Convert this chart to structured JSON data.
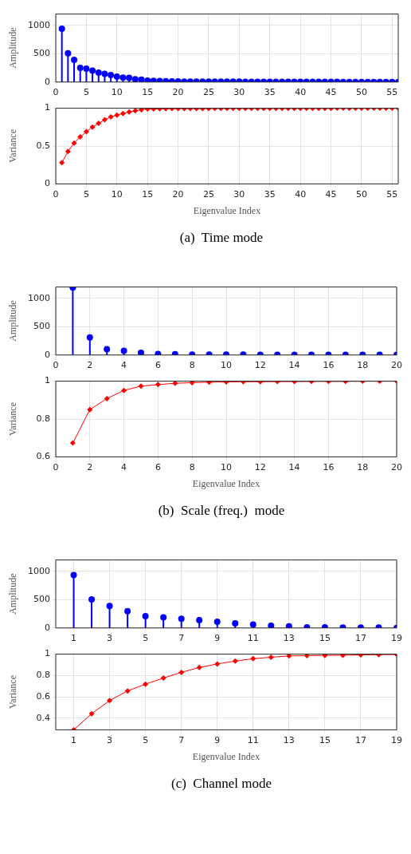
{
  "chart_data": [
    {
      "type": "lollipop",
      "ylabel": "Amplitude",
      "x": [
        1,
        2,
        3,
        4,
        5,
        6,
        7,
        8,
        9,
        10,
        11,
        12,
        13,
        14,
        15,
        16,
        17,
        18,
        19,
        20,
        21,
        22,
        23,
        24,
        25,
        26,
        27,
        28,
        29,
        30,
        31,
        32,
        33,
        34,
        35,
        36,
        37,
        38,
        39,
        40,
        41,
        42,
        43,
        44,
        45,
        46,
        47,
        48,
        49,
        50,
        51,
        52,
        53,
        54,
        55,
        56
      ],
      "values": [
        942,
        508,
        392,
        250,
        238,
        200,
        165,
        146,
        123,
        96,
        77,
        73,
        50,
        42,
        27,
        23,
        19,
        15,
        12,
        10,
        9,
        9,
        8,
        8,
        7,
        7,
        7,
        6,
        6,
        6,
        5,
        5,
        5,
        5,
        4,
        4,
        4,
        4,
        4,
        3,
        3,
        3,
        3,
        3,
        3,
        3,
        2,
        2,
        2,
        2,
        2,
        2,
        2,
        2,
        2,
        1
      ],
      "color": "#0000ff",
      "marker": "circle",
      "xlim": [
        0,
        56
      ],
      "xticks": [
        0,
        5,
        10,
        15,
        20,
        25,
        30,
        35,
        40,
        45,
        50,
        55
      ],
      "ylim": [
        0,
        1200
      ],
      "yticks": [
        0,
        500,
        1000
      ],
      "grid": true
    },
    {
      "type": "line",
      "xlabel": "Eigenvalue Index",
      "ylabel": "Variance",
      "x": [
        1,
        2,
        3,
        4,
        5,
        6,
        7,
        8,
        9,
        10,
        11,
        12,
        13,
        14,
        15,
        16,
        17,
        18,
        19,
        20,
        21,
        22,
        23,
        24,
        25,
        26,
        27,
        28,
        29,
        30,
        31,
        32,
        33,
        34,
        35,
        36,
        37,
        38,
        39,
        40,
        41,
        42,
        43,
        44,
        45,
        46,
        47,
        48,
        49,
        50,
        51,
        52,
        53,
        54,
        55,
        56
      ],
      "values": [
        0.28,
        0.43,
        0.54,
        0.62,
        0.69,
        0.75,
        0.8,
        0.847,
        0.884,
        0.91,
        0.93,
        0.95,
        0.966,
        0.98,
        0.99,
        0.99,
        0.992,
        0.994,
        0.995,
        0.996,
        0.997,
        0.997,
        0.997,
        0.997,
        0.997,
        0.998,
        0.998,
        0.998,
        0.998,
        0.998,
        0.998,
        0.998,
        0.998,
        0.998,
        0.998,
        0.999,
        0.999,
        0.999,
        0.999,
        0.999,
        0.999,
        0.999,
        0.999,
        0.999,
        0.999,
        1,
        1,
        1,
        1,
        1,
        1,
        1,
        1,
        1,
        1,
        1
      ],
      "color": "#ff0000",
      "marker": "diamond",
      "line_style": "solid",
      "xlim": [
        0,
        56
      ],
      "xticks": [
        0,
        5,
        10,
        15,
        20,
        25,
        30,
        35,
        40,
        45,
        50,
        55
      ],
      "ylim": [
        0,
        1
      ],
      "yticks": [
        0,
        0.5,
        1
      ],
      "grid": true,
      "annotations": [
        "(a)  Time mode"
      ]
    },
    {
      "type": "lollipop",
      "ylabel": "Amplitude",
      "x": [
        1,
        2,
        3,
        4,
        5,
        6,
        7,
        8,
        9,
        10,
        11,
        12,
        13,
        14,
        15,
        16,
        17,
        18,
        19,
        20
      ],
      "values": [
        1190,
        309,
        102,
        73,
        41,
        20,
        16,
        8,
        7,
        6,
        6,
        5,
        5,
        4,
        4,
        4,
        3,
        3,
        3,
        3
      ],
      "color": "#0000ff",
      "marker": "circle",
      "xlim": [
        0,
        20
      ],
      "xticks": [
        0,
        2,
        4,
        6,
        8,
        10,
        12,
        14,
        16,
        18,
        20
      ],
      "ylim": [
        0,
        1200
      ],
      "yticks": [
        0,
        500,
        1000
      ],
      "grid": true
    },
    {
      "type": "line",
      "xlabel": "Eigenvalue Index",
      "ylabel": "Variance",
      "x": [
        1,
        2,
        3,
        4,
        5,
        6,
        7,
        8,
        9,
        10,
        11,
        12,
        13,
        14,
        15,
        16,
        17,
        18,
        19,
        20
      ],
      "values": [
        0.673,
        0.85,
        0.908,
        0.951,
        0.974,
        0.982,
        0.989,
        0.992,
        0.995,
        0.996,
        0.997,
        0.997,
        0.998,
        0.998,
        0.999,
        0.999,
        0.999,
        1,
        1,
        1
      ],
      "color": "#ff0000",
      "marker": "diamond",
      "line_style": "solid",
      "xlim": [
        0,
        20
      ],
      "xticks": [
        0,
        2,
        4,
        6,
        8,
        10,
        12,
        14,
        16,
        18,
        20
      ],
      "ylim": [
        0.6,
        1
      ],
      "yticks": [
        0.6,
        0.8,
        1
      ],
      "grid": true,
      "annotations": [
        "(b)  Scale (freq.)  mode"
      ]
    },
    {
      "type": "lollipop",
      "ylabel": "Amplitude",
      "x": [
        1,
        2,
        3,
        4,
        5,
        6,
        7,
        8,
        9,
        10,
        11,
        12,
        13,
        14,
        15,
        16,
        17,
        18,
        19
      ],
      "values": [
        934,
        504,
        389,
        295,
        209,
        189,
        164,
        139,
        111,
        82,
        61,
        41,
        29,
        12,
        12,
        8,
        8,
        8,
        2
      ],
      "color": "#0000ff",
      "marker": "circle",
      "xlim": [
        0,
        19
      ],
      "xticks": [
        1,
        3,
        5,
        7,
        9,
        11,
        13,
        15,
        17,
        19
      ],
      "ylim": [
        0,
        1200
      ],
      "yticks": [
        0,
        500,
        1000
      ],
      "grid": true
    },
    {
      "type": "line",
      "xlabel": "Eigenvalue Index",
      "ylabel": "Variance",
      "x": [
        1,
        2,
        3,
        4,
        5,
        6,
        7,
        8,
        9,
        10,
        11,
        12,
        13,
        14,
        15,
        16,
        17,
        18,
        19
      ],
      "values": [
        0.29,
        0.441,
        0.564,
        0.655,
        0.718,
        0.776,
        0.829,
        0.875,
        0.908,
        0.935,
        0.957,
        0.971,
        0.983,
        0.986,
        0.988,
        0.99,
        0.993,
        0.995,
        0.997
      ],
      "color": "#ff0000",
      "marker": "diamond",
      "line_style": "solid",
      "xlim": [
        0,
        19
      ],
      "xticks": [
        1,
        3,
        5,
        7,
        9,
        11,
        13,
        15,
        17,
        19
      ],
      "ylim": [
        0.29,
        1
      ],
      "yticks": [
        0.4,
        0.6,
        0.8,
        1
      ],
      "grid": true,
      "annotations": [
        "(c)  Channel mode"
      ]
    }
  ]
}
